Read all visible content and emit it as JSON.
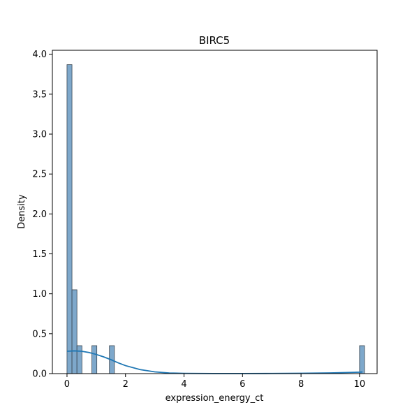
{
  "chart_data": {
    "type": "histogram",
    "title": "BIRC5",
    "xlabel": "expression_energy_ct",
    "ylabel": "Density",
    "xlim": [
      -0.5,
      10.6
    ],
    "ylim": [
      0,
      4.05
    ],
    "xticks": [
      0,
      2,
      4,
      6,
      8,
      10
    ],
    "yticks": [
      0.0,
      0.5,
      1.0,
      1.5,
      2.0,
      2.5,
      3.0,
      3.5,
      4.0
    ],
    "grid": false,
    "legend": "none",
    "bin_width": 0.17,
    "bins": [
      {
        "x0": 0.0,
        "x1": 0.17,
        "density": 3.87
      },
      {
        "x0": 0.17,
        "x1": 0.34,
        "density": 1.05
      },
      {
        "x0": 0.34,
        "x1": 0.51,
        "density": 0.35
      },
      {
        "x0": 0.85,
        "x1": 1.02,
        "density": 0.35
      },
      {
        "x0": 1.45,
        "x1": 1.62,
        "density": 0.35
      },
      {
        "x0": 10.0,
        "x1": 10.17,
        "density": 0.35
      }
    ],
    "kde": {
      "x": [
        0.0,
        0.25,
        0.5,
        0.75,
        1.0,
        1.25,
        1.5,
        1.75,
        2.0,
        2.5,
        3.0,
        3.5,
        4.0,
        5.0,
        6.0,
        7.0,
        8.0,
        9.0,
        9.5,
        10.0,
        10.1
      ],
      "y": [
        0.28,
        0.285,
        0.28,
        0.265,
        0.24,
        0.21,
        0.175,
        0.135,
        0.1,
        0.05,
        0.022,
        0.008,
        0.003,
        0.001,
        0.001,
        0.002,
        0.004,
        0.009,
        0.013,
        0.018,
        0.02
      ]
    },
    "colors": {
      "bar_fill": "#7ea8cb",
      "bar_edge": "#3a4550",
      "kde_line": "#1f77b4"
    }
  }
}
